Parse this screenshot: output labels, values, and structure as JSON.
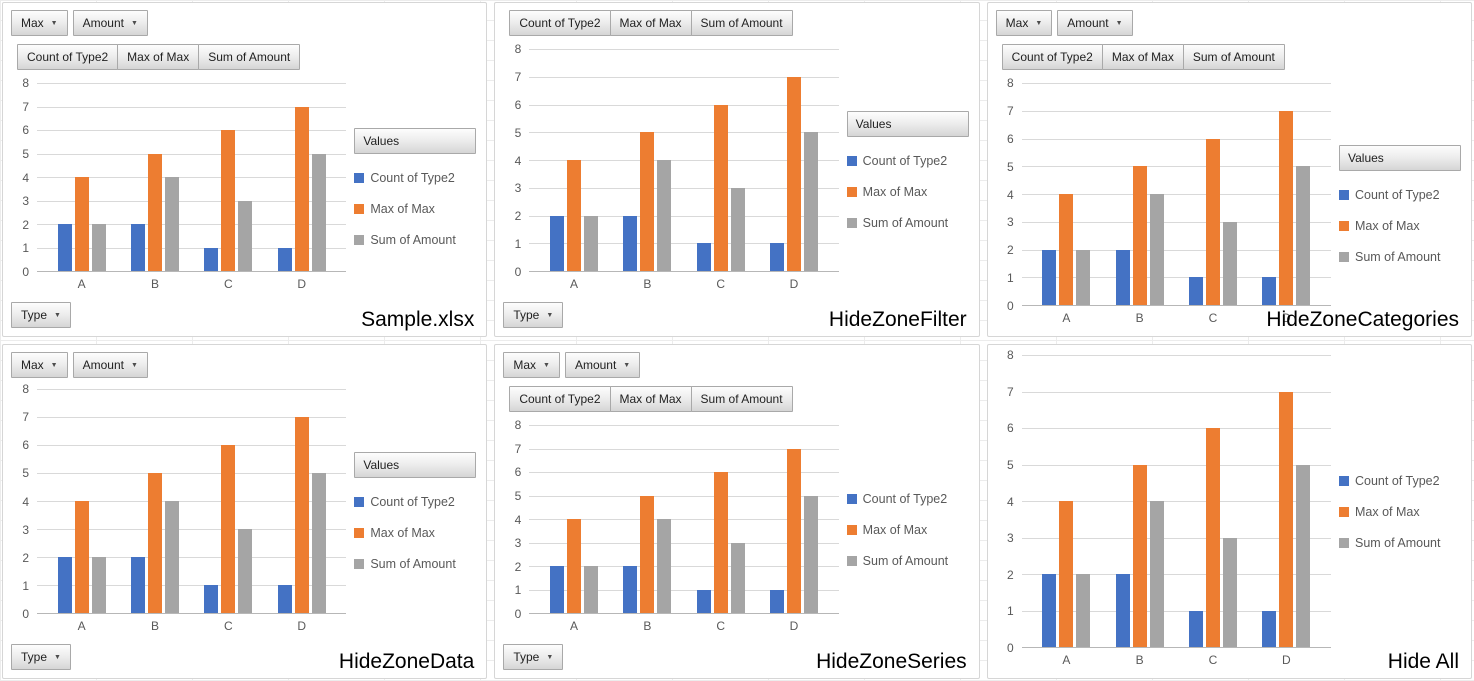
{
  "shared": {
    "filter_buttons": [
      "Max",
      "Amount"
    ],
    "field_buttons": [
      "Count of Type2",
      "Max of Max",
      "Sum of Amount"
    ],
    "values_button": "Values",
    "axis_button": "Type",
    "dropdown_icon": "▼"
  },
  "chart_data": {
    "type": "bar",
    "categories": [
      "A",
      "B",
      "C",
      "D"
    ],
    "series": [
      {
        "name": "Count of Type2",
        "color": "#4472c4",
        "values": [
          2,
          2,
          1,
          1
        ]
      },
      {
        "name": "Max of Max",
        "color": "#ed7d31",
        "values": [
          4,
          5,
          6,
          7
        ]
      },
      {
        "name": "Sum of Amount",
        "color": "#a5a5a5",
        "values": [
          2,
          4,
          3,
          5
        ]
      }
    ],
    "title": "",
    "xlabel": "",
    "ylabel": "",
    "ylim": [
      0,
      8
    ],
    "ytick_step": 1,
    "yticks": [
      0,
      1,
      2,
      3,
      4,
      5,
      6,
      7,
      8
    ],
    "grid": true,
    "legend_position": "right"
  },
  "colors": {
    "gridline": "#d9d9d9",
    "axis_text": "#595959",
    "panel_border": "#d6d6d6",
    "button_border": "#a9a9a9",
    "title_text": "#000000"
  },
  "panels": [
    {
      "title": "Sample.xlsx",
      "show_filter_buttons": true,
      "show_field_buttons": true,
      "show_values_button": true,
      "show_axis_button": true
    },
    {
      "title": "HideZoneFilter",
      "show_filter_buttons": false,
      "show_field_buttons": true,
      "show_values_button": true,
      "show_axis_button": true
    },
    {
      "title": "HideZoneCategories",
      "show_filter_buttons": true,
      "show_field_buttons": true,
      "show_values_button": true,
      "show_axis_button": false
    },
    {
      "title": "HideZoneData",
      "show_filter_buttons": true,
      "show_field_buttons": false,
      "show_values_button": true,
      "show_axis_button": true
    },
    {
      "title": "HideZoneSeries",
      "show_filter_buttons": true,
      "show_field_buttons": true,
      "show_values_button": false,
      "show_axis_button": true
    },
    {
      "title": "Hide All",
      "show_filter_buttons": false,
      "show_field_buttons": false,
      "show_values_button": false,
      "show_axis_button": false
    }
  ]
}
